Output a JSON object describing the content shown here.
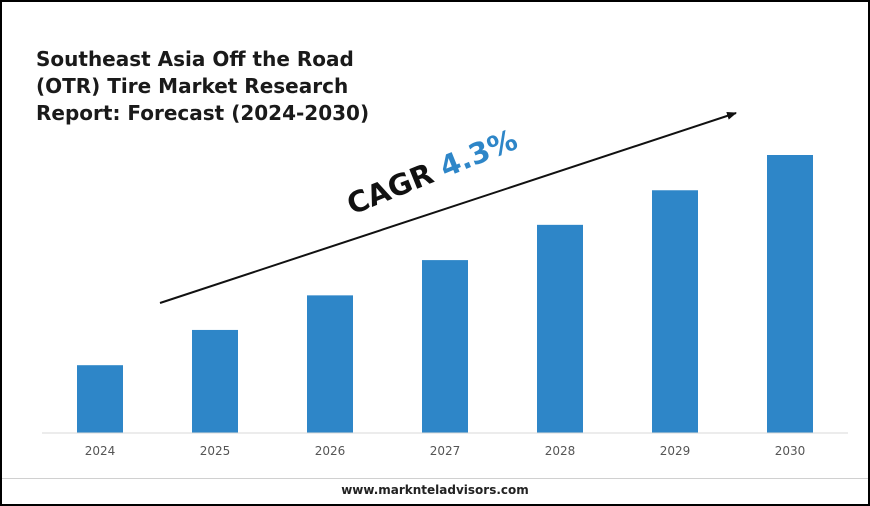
{
  "title": "Southeast Asia Off the Road (OTR) Tire Market Research Report: Forecast (2024-2030)",
  "annotation": {
    "label": "CAGR",
    "value": "4.3%",
    "value_color": "#2e86c8"
  },
  "footer": {
    "website": "www.marknteladvisors.com"
  },
  "chart_data": {
    "type": "bar",
    "categories": [
      "2024",
      "2025",
      "2026",
      "2027",
      "2028",
      "2029",
      "2030"
    ],
    "values": [
      1.0,
      1.52,
      2.03,
      2.55,
      3.07,
      3.58,
      4.1
    ],
    "ylim": [
      0,
      4.1
    ],
    "bar_color": "#2e86c8",
    "grid": false,
    "trend_arrow": true
  }
}
